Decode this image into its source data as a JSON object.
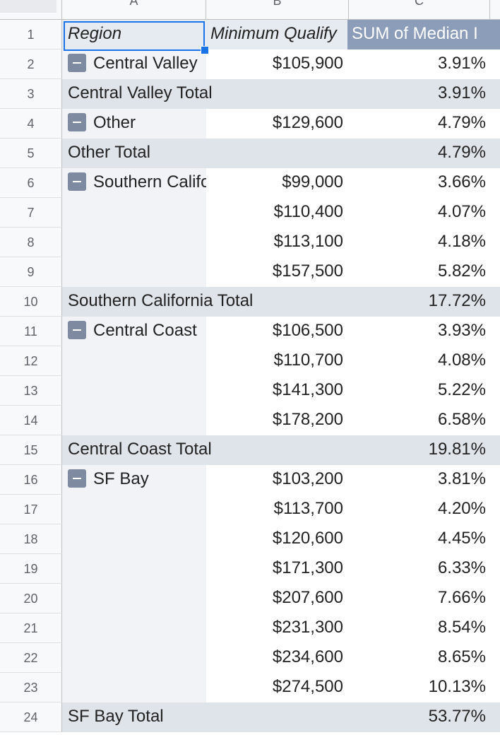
{
  "columns": {
    "a": "A",
    "b": "B",
    "c": "C"
  },
  "header": {
    "num": "1",
    "region": "Region",
    "min_income": "Minimum Qualify",
    "sum_median": "SUM of Median I"
  },
  "rows": [
    {
      "num": "2",
      "type": "group",
      "region": "Central Valley",
      "b": "$105,900",
      "c": "3.91%"
    },
    {
      "num": "3",
      "type": "total",
      "region": "Central Valley Total",
      "b": "",
      "c": "3.91%"
    },
    {
      "num": "4",
      "type": "group",
      "region": "Other",
      "b": "$129,600",
      "c": "4.79%"
    },
    {
      "num": "5",
      "type": "total",
      "region": "Other Total",
      "b": "",
      "c": "4.79%"
    },
    {
      "num": "6",
      "type": "group",
      "region": "Southern California",
      "b": "$99,000",
      "c": "3.66%"
    },
    {
      "num": "7",
      "type": "data",
      "region": "",
      "b": "$110,400",
      "c": "4.07%"
    },
    {
      "num": "8",
      "type": "data",
      "region": "",
      "b": "$113,100",
      "c": "4.18%"
    },
    {
      "num": "9",
      "type": "data",
      "region": "",
      "b": "$157,500",
      "c": "5.82%"
    },
    {
      "num": "10",
      "type": "total",
      "region": "Southern California Total",
      "b": "",
      "c": "17.72%"
    },
    {
      "num": "11",
      "type": "group",
      "region": "Central Coast",
      "b": "$106,500",
      "c": "3.93%"
    },
    {
      "num": "12",
      "type": "data",
      "region": "",
      "b": "$110,700",
      "c": "4.08%"
    },
    {
      "num": "13",
      "type": "data",
      "region": "",
      "b": "$141,300",
      "c": "5.22%"
    },
    {
      "num": "14",
      "type": "data",
      "region": "",
      "b": "$178,200",
      "c": "6.58%"
    },
    {
      "num": "15",
      "type": "total",
      "region": "Central Coast Total",
      "b": "",
      "c": "19.81%"
    },
    {
      "num": "16",
      "type": "group",
      "region": "SF Bay",
      "b": "$103,200",
      "c": "3.81%"
    },
    {
      "num": "17",
      "type": "data",
      "region": "",
      "b": "$113,700",
      "c": "4.20%"
    },
    {
      "num": "18",
      "type": "data",
      "region": "",
      "b": "$120,600",
      "c": "4.45%"
    },
    {
      "num": "19",
      "type": "data",
      "region": "",
      "b": "$171,300",
      "c": "6.33%"
    },
    {
      "num": "20",
      "type": "data",
      "region": "",
      "b": "$207,600",
      "c": "7.66%"
    },
    {
      "num": "21",
      "type": "data",
      "region": "",
      "b": "$231,300",
      "c": "8.54%"
    },
    {
      "num": "22",
      "type": "data",
      "region": "",
      "b": "$234,600",
      "c": "8.65%"
    },
    {
      "num": "23",
      "type": "data",
      "region": "",
      "b": "$274,500",
      "c": "10.13%"
    },
    {
      "num": "24",
      "type": "total",
      "region": "SF Bay Total",
      "b": "",
      "c": "53.77%"
    }
  ]
}
